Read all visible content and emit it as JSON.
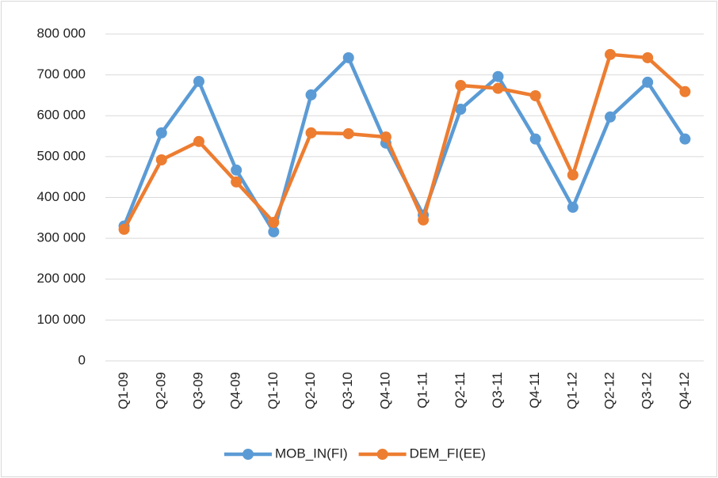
{
  "chart_data": {
    "type": "line",
    "categories": [
      "Q1-09",
      "Q2-09",
      "Q3-09",
      "Q4-09",
      "Q1-10",
      "Q2-10",
      "Q3-10",
      "Q4-10",
      "Q1-11",
      "Q2-11",
      "Q3-11",
      "Q4-11",
      "Q1-12",
      "Q2-12",
      "Q3-12",
      "Q4-12"
    ],
    "series": [
      {
        "name": "MOB_IN(FI)",
        "color": "#5b9bd5",
        "values": [
          330000,
          558000,
          684000,
          467000,
          316000,
          651000,
          742000,
          533000,
          357000,
          616000,
          696000,
          543000,
          376000,
          597000,
          682000,
          543000
        ]
      },
      {
        "name": "DEM_FI(EE)",
        "color": "#ed7d31",
        "values": [
          322000,
          492000,
          537000,
          438000,
          339000,
          558000,
          556000,
          548000,
          345000,
          674000,
          667000,
          649000,
          455000,
          750000,
          742000,
          659000
        ]
      }
    ],
    "ylim": [
      0,
      800000
    ],
    "yticks": [
      {
        "value": 0,
        "label": "0"
      },
      {
        "value": 100000,
        "label": "100 000"
      },
      {
        "value": 200000,
        "label": "200 000"
      },
      {
        "value": 300000,
        "label": "300 000"
      },
      {
        "value": 400000,
        "label": "400 000"
      },
      {
        "value": 500000,
        "label": "500 000"
      },
      {
        "value": 600000,
        "label": "600 000"
      },
      {
        "value": 700000,
        "label": "700 000"
      },
      {
        "value": 800000,
        "label": "800 000"
      }
    ],
    "grid": true,
    "legend": "bottom"
  }
}
